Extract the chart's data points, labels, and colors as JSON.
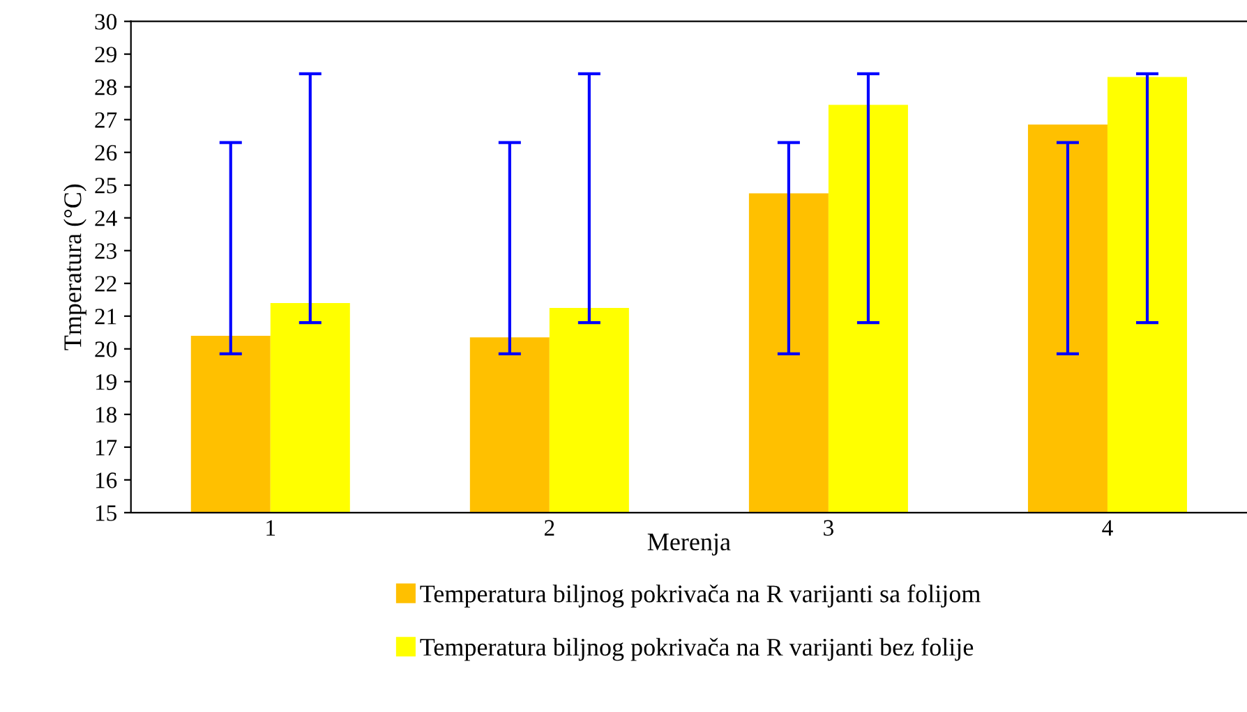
{
  "chart_data": {
    "type": "bar",
    "xlabel": "Merenja",
    "ylabel": "Tmperatura (°C)",
    "categories": [
      "1",
      "2",
      "3",
      "4"
    ],
    "series": [
      {
        "name": "Temperatura biljnog pokrivača na R varijanti sa folijom",
        "color": "#ffc000",
        "values": [
          20.4,
          20.35,
          24.75,
          26.85
        ],
        "errors": [
          [
            19.85,
            26.3
          ],
          [
            19.85,
            26.3
          ],
          [
            19.85,
            26.3
          ],
          [
            19.85,
            26.3
          ]
        ]
      },
      {
        "name": "Temperatura biljnog pokrivača na R varijanti bez folije",
        "color": "#ffff00",
        "values": [
          21.4,
          21.25,
          27.45,
          28.3
        ],
        "errors": [
          [
            20.8,
            28.4
          ],
          [
            20.8,
            28.4
          ],
          [
            20.8,
            28.4
          ],
          [
            20.8,
            28.4
          ]
        ]
      }
    ],
    "ylim": [
      15,
      30
    ],
    "yticks": [
      15,
      16,
      17,
      18,
      19,
      20,
      21,
      22,
      23,
      24,
      25,
      26,
      27,
      28,
      29,
      30
    ],
    "grid": false,
    "legend": "bottom"
  }
}
